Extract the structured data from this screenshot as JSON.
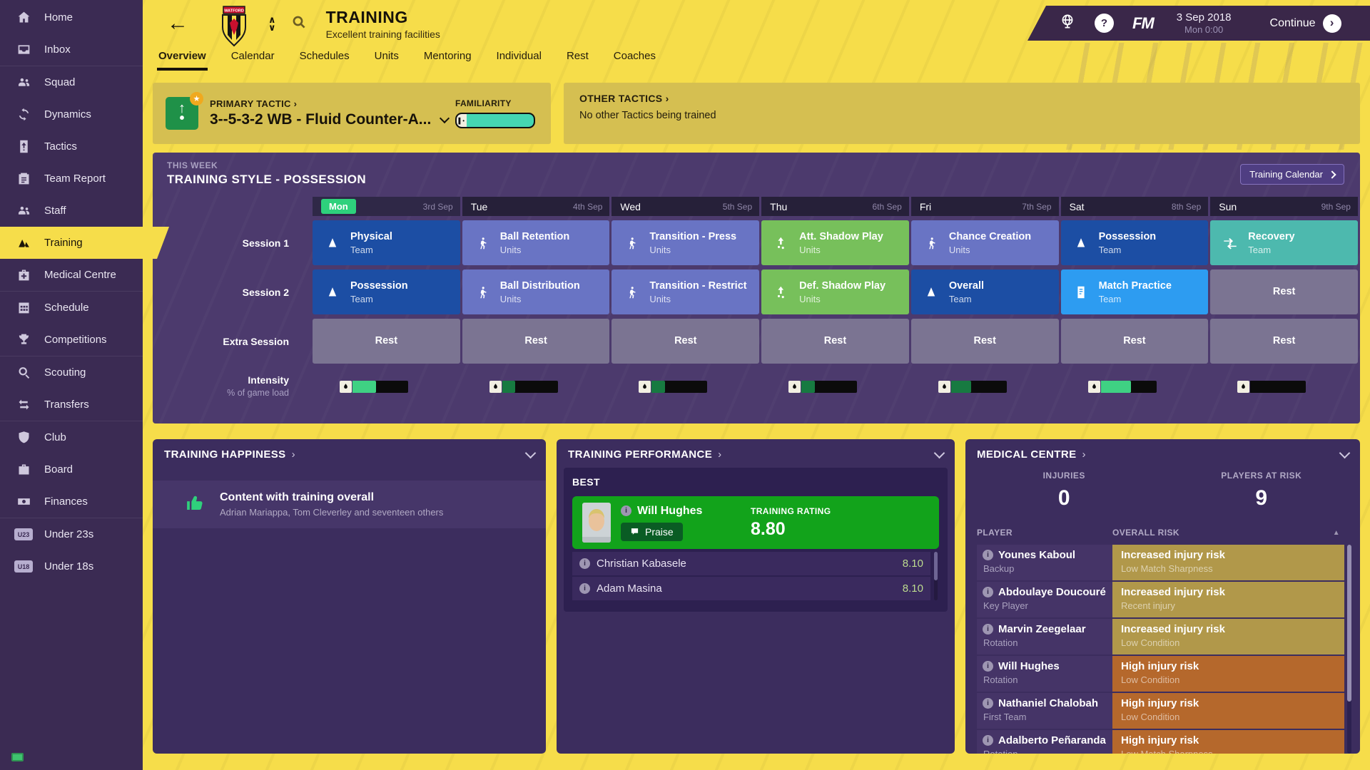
{
  "colors": {
    "accent_yellow": "#f6dd4a",
    "sidebar_purple": "#3b2b53",
    "panel_purple": "#4c3a6d",
    "team_blue": "#1c4ea4",
    "units_purple": "#6974c4",
    "units_green": "#77c05b",
    "team_teal": "#4db9ae",
    "match_blue": "#2d9cf1",
    "rest_gray": "#7b7492",
    "risk_increased": "#b1984a",
    "risk_high": "#b5682c",
    "today_green": "#2ed17c",
    "rating_green": "#12a31b"
  },
  "sidebar": {
    "items": [
      {
        "label": "Home",
        "icon": "home-icon"
      },
      {
        "label": "Inbox",
        "icon": "inbox-icon"
      },
      {
        "label": "Squad",
        "icon": "squad-icon",
        "group_start": true
      },
      {
        "label": "Dynamics",
        "icon": "dynamics-icon"
      },
      {
        "label": "Tactics",
        "icon": "tactics-icon"
      },
      {
        "label": "Team Report",
        "icon": "team-report-icon"
      },
      {
        "label": "Staff",
        "icon": "staff-icon"
      },
      {
        "label": "Training",
        "icon": "training-icon",
        "active": true
      },
      {
        "label": "Medical Centre",
        "icon": "medical-centre-icon"
      },
      {
        "label": "Schedule",
        "icon": "schedule-icon",
        "group_start": true
      },
      {
        "label": "Competitions",
        "icon": "competitions-icon"
      },
      {
        "label": "Scouting",
        "icon": "scouting-icon",
        "group_start": true
      },
      {
        "label": "Transfers",
        "icon": "transfers-icon"
      },
      {
        "label": "Club",
        "icon": "club-icon",
        "group_start": true
      },
      {
        "label": "Board",
        "icon": "board-icon"
      },
      {
        "label": "Finances",
        "icon": "finances-icon"
      },
      {
        "label": "Under 23s",
        "icon": "under-23s-icon",
        "badge": "U23",
        "group_start": true
      },
      {
        "label": "Under 18s",
        "icon": "under-18s-icon",
        "badge": "U18"
      }
    ]
  },
  "header": {
    "title": "TRAINING",
    "subtitle": "Excellent training facilities",
    "club": "WATFORD",
    "date": "3 Sep 2018",
    "time": "Mon 0:00",
    "continue_label": "Continue",
    "fm_logo": "FM"
  },
  "tabs": {
    "active": "Overview",
    "items": [
      "Overview",
      "Calendar",
      "Schedules",
      "Units",
      "Mentoring",
      "Individual",
      "Rest",
      "Coaches"
    ]
  },
  "primary_tactic": {
    "label": "PRIMARY TACTIC",
    "name": "3--5-3-2 WB - Fluid Counter-A...",
    "familiarity_label": "FAMILIARITY",
    "familiarity_pct": 97
  },
  "other_tactics": {
    "label": "OTHER TACTICS",
    "text": "No other Tactics being trained"
  },
  "week": {
    "kicker": "THIS WEEK",
    "title": "TRAINING STYLE - POSSESSION",
    "calendar_button": "Training Calendar",
    "days": [
      {
        "name": "Mon",
        "date": "3rd Sep",
        "today": true
      },
      {
        "name": "Tue",
        "date": "4th Sep"
      },
      {
        "name": "Wed",
        "date": "5th Sep"
      },
      {
        "name": "Thu",
        "date": "6th Sep"
      },
      {
        "name": "Fri",
        "date": "7th Sep"
      },
      {
        "name": "Sat",
        "date": "8th Sep"
      },
      {
        "name": "Sun",
        "date": "9th Sep"
      }
    ],
    "rows": [
      {
        "label": "Session 1",
        "cells": [
          {
            "title": "Physical",
            "subtitle": "Team",
            "style": "team-blue",
            "icon": "cone-icon"
          },
          {
            "title": "Ball Retention",
            "subtitle": "Units",
            "style": "units-purple",
            "icon": "walking-icon"
          },
          {
            "title": "Transition - Press",
            "subtitle": "Units",
            "style": "units-purple",
            "icon": "walking-icon"
          },
          {
            "title": "Att. Shadow Play",
            "subtitle": "Units",
            "style": "units-green",
            "icon": "shadow-play-icon"
          },
          {
            "title": "Chance Creation",
            "subtitle": "Units",
            "style": "units-purple",
            "icon": "walking-icon"
          },
          {
            "title": "Possession",
            "subtitle": "Team",
            "style": "team-blue",
            "icon": "cone-icon"
          },
          {
            "title": "Recovery",
            "subtitle": "Team",
            "style": "team-teal",
            "icon": "recovery-icon"
          }
        ]
      },
      {
        "label": "Session 2",
        "cells": [
          {
            "title": "Possession",
            "subtitle": "Team",
            "style": "team-blue",
            "icon": "cone-icon"
          },
          {
            "title": "Ball Distribution",
            "subtitle": "Units",
            "style": "units-purple",
            "icon": "walking-icon"
          },
          {
            "title": "Transition - Restrict",
            "subtitle": "Units",
            "style": "units-purple",
            "icon": "walking-icon"
          },
          {
            "title": "Def. Shadow Play",
            "subtitle": "Units",
            "style": "units-green",
            "icon": "shadow-play-icon"
          },
          {
            "title": "Overall",
            "subtitle": "Team",
            "style": "team-blue",
            "icon": "cone-icon"
          },
          {
            "title": "Match Practice",
            "subtitle": "Team",
            "style": "team-bright",
            "icon": "match-practice-icon"
          },
          {
            "title": "Rest",
            "subtitle": "",
            "style": "rest",
            "icon": null
          }
        ]
      },
      {
        "label": "Extra Session",
        "cells": [
          {
            "title": "Rest",
            "subtitle": "",
            "style": "rest",
            "icon": null
          },
          {
            "title": "Rest",
            "subtitle": "",
            "style": "rest",
            "icon": null
          },
          {
            "title": "Rest",
            "subtitle": "",
            "style": "rest",
            "icon": null
          },
          {
            "title": "Rest",
            "subtitle": "",
            "style": "rest",
            "icon": null
          },
          {
            "title": "Rest",
            "subtitle": "",
            "style": "rest",
            "icon": null
          },
          {
            "title": "Rest",
            "subtitle": "",
            "style": "rest",
            "icon": null
          },
          {
            "title": "Rest",
            "subtitle": "",
            "style": "rest",
            "icon": null
          }
        ]
      }
    ],
    "intensity": {
      "label": "Intensity",
      "sublabel": "% of game load",
      "bars": [
        {
          "pct": 42,
          "bright": true
        },
        {
          "pct": 24,
          "bright": false
        },
        {
          "pct": 24,
          "bright": false
        },
        {
          "pct": 24,
          "bright": false
        },
        {
          "pct": 36,
          "bright": false
        },
        {
          "pct": 55,
          "bright": true
        },
        {
          "pct": 0,
          "bright": false
        }
      ]
    }
  },
  "happiness": {
    "title": "TRAINING HAPPINESS",
    "headline": "Content with training overall",
    "detail": "Adrian Mariappa, Tom Cleverley and seventeen others"
  },
  "performance": {
    "title": "TRAINING PERFORMANCE",
    "best_label": "BEST",
    "best": {
      "name": "Will Hughes",
      "action": "Praise",
      "rating_label": "TRAINING RATING",
      "rating": "8.80"
    },
    "others": [
      {
        "name": "Christian Kabasele",
        "rating": "8.10"
      },
      {
        "name": "Adam Masina",
        "rating": "8.10"
      }
    ]
  },
  "medical": {
    "title": "MEDICAL CENTRE",
    "stats": [
      {
        "label": "INJURIES",
        "value": "0"
      },
      {
        "label": "PLAYERS AT RISK",
        "value": "9"
      }
    ],
    "columns": [
      "PLAYER",
      "OVERALL RISK"
    ],
    "rows": [
      {
        "name": "Younes Kaboul",
        "role": "Backup",
        "risk": "Increased injury risk",
        "reason": "Low Match Sharpness",
        "severity": "increased"
      },
      {
        "name": "Abdoulaye Doucouré",
        "role": "Key Player",
        "risk": "Increased injury risk",
        "reason": "Recent injury",
        "severity": "increased"
      },
      {
        "name": "Marvin Zeegelaar",
        "role": "Rotation",
        "risk": "Increased injury risk",
        "reason": "Low Condition",
        "severity": "increased"
      },
      {
        "name": "Will Hughes",
        "role": "Rotation",
        "risk": "High injury risk",
        "reason": "Low Condition",
        "severity": "high"
      },
      {
        "name": "Nathaniel Chalobah",
        "role": "First Team",
        "risk": "High injury risk",
        "reason": "Low Condition",
        "severity": "high"
      },
      {
        "name": "Adalberto Peñaranda",
        "role": "Rotation",
        "risk": "High injury risk",
        "reason": "Low Match Sharpness",
        "severity": "high"
      }
    ]
  }
}
